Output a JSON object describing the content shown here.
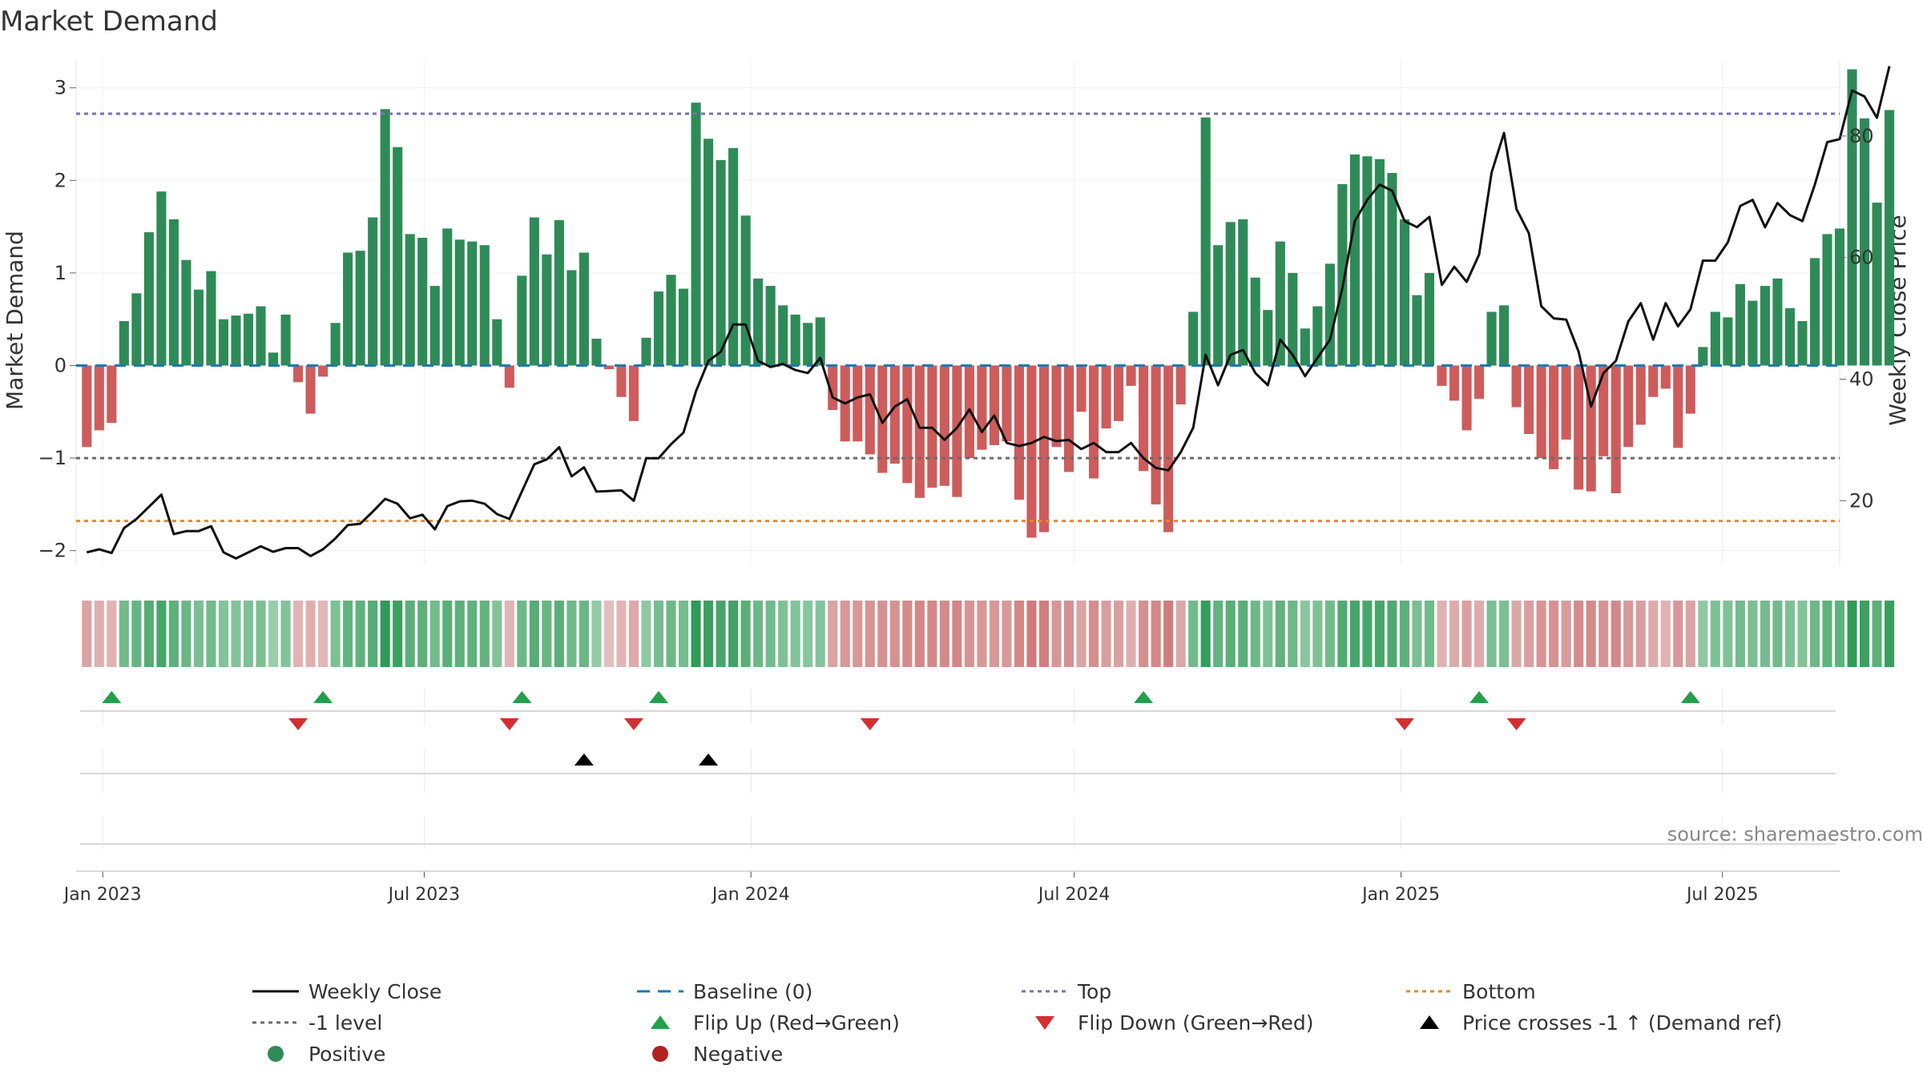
{
  "chart_data": {
    "type": "bar",
    "title": "Market Demand",
    "ylabel": "Market Demand",
    "y2label": "Weekly Close Price",
    "ylim": [
      -2.15,
      3.3
    ],
    "y2lim": [
      9.5,
      92.5
    ],
    "yticks": [
      -2,
      -1,
      0,
      1,
      2,
      3
    ],
    "y2ticks": [
      20,
      40,
      60,
      80
    ],
    "x_start": "2022-12-23",
    "x_step_days": 7,
    "x_min": "2022-12-17",
    "x_max": "2025-09-05",
    "xticks": [
      {
        "date": "2023-01-01",
        "label": "Jan 2023"
      },
      {
        "date": "2023-07-01",
        "label": "Jul 2023"
      },
      {
        "date": "2024-01-01",
        "label": "Jan 2024"
      },
      {
        "date": "2024-07-01",
        "label": "Jul 2024"
      },
      {
        "date": "2025-01-01",
        "label": "Jan 2025"
      },
      {
        "date": "2025-07-01",
        "label": "Jul 2025"
      }
    ],
    "reference_lines": [
      {
        "name": "Baseline (0)",
        "value": 0,
        "color": "#1f77b4"
      },
      {
        "name": "Top",
        "value": 2.72,
        "color": "#7b6fae"
      },
      {
        "name": "-1 level",
        "value": -1,
        "color": "#6b6b6b"
      },
      {
        "name": "Bottom",
        "value": -1.68,
        "color": "#e8892b"
      }
    ],
    "colors": {
      "positive": "#2e8b57",
      "negative": "#cd5c5c",
      "price": "#111111",
      "flip_up": "#22a04b",
      "flip_down": "#d32f2f",
      "cross": "#000000"
    },
    "series": [
      {
        "name": "Market Demand",
        "values": [
          -0.88,
          -0.7,
          -0.62,
          0.48,
          0.78,
          1.44,
          1.88,
          1.58,
          1.14,
          0.82,
          1.02,
          0.5,
          0.54,
          0.56,
          0.64,
          0.14,
          0.55,
          -0.18,
          -0.52,
          -0.12,
          0.46,
          1.22,
          1.24,
          1.6,
          2.77,
          2.36,
          1.42,
          1.38,
          0.86,
          1.48,
          1.36,
          1.34,
          1.3,
          0.5,
          -0.24,
          0.97,
          1.6,
          1.2,
          1.57,
          1.03,
          1.22,
          0.29,
          -0.04,
          -0.34,
          -0.6,
          0.3,
          0.8,
          0.98,
          0.83,
          2.84,
          2.45,
          2.22,
          2.35,
          1.62,
          0.94,
          0.86,
          0.65,
          0.55,
          0.46,
          0.52,
          -0.48,
          -0.82,
          -0.82,
          -0.96,
          -1.16,
          -1.06,
          -1.27,
          -1.43,
          -1.32,
          -1.3,
          -1.42,
          -1.0,
          -0.91,
          -0.86,
          -0.82,
          -1.45,
          -1.86,
          -1.8,
          -0.88,
          -1.15,
          -0.5,
          -1.22,
          -0.68,
          -0.6,
          -0.22,
          -1.14,
          -1.5,
          -1.8,
          -0.42,
          0.58,
          2.68,
          1.3,
          1.55,
          1.58,
          0.95,
          0.6,
          1.34,
          1.0,
          0.4,
          0.64,
          1.1,
          1.96,
          2.28,
          2.26,
          2.23,
          2.08,
          1.58,
          0.76,
          1.0,
          -0.22,
          -0.38,
          -0.7,
          -0.36,
          0.58,
          0.65,
          -0.45,
          -0.74,
          -1.0,
          -1.12,
          -0.8,
          -1.34,
          -1.36,
          -0.98,
          -1.38,
          -0.88,
          -0.64,
          -0.34,
          -0.25,
          -0.89,
          -0.52,
          0.2,
          0.58,
          0.52,
          0.88,
          0.7,
          0.86,
          0.94,
          0.62,
          0.48,
          1.16,
          1.42,
          1.48,
          3.2,
          2.67,
          1.76,
          2.76
        ]
      },
      {
        "name": "Weekly Close",
        "values": [
          11.5,
          12.0,
          11.4,
          15.5,
          17.0,
          19.0,
          21.0,
          14.5,
          15.0,
          15.0,
          15.8,
          11.5,
          10.5,
          11.5,
          12.5,
          11.6,
          12.2,
          12.2,
          10.9,
          12.0,
          13.8,
          16.0,
          16.2,
          18.2,
          20.3,
          19.5,
          17.1,
          17.7,
          15.3,
          19.1,
          19.9,
          20.0,
          19.5,
          17.8,
          17.0,
          21.5,
          26.0,
          26.8,
          28.8,
          24.0,
          25.5,
          21.5,
          21.6,
          21.7,
          20.0,
          27.0,
          27.0,
          29.3,
          31.2,
          38.0,
          43.0,
          44.5,
          49.0,
          49.0,
          43.0,
          42.0,
          42.5,
          41.5,
          41.0,
          43.5,
          37.0,
          36.0,
          37.0,
          37.5,
          32.8,
          35.5,
          36.7,
          32.0,
          32.0,
          30.0,
          32.0,
          35.0,
          31.3,
          34.0,
          29.5,
          29.0,
          29.5,
          30.5,
          29.8,
          30.0,
          28.5,
          29.5,
          28.0,
          28.0,
          29.5,
          27.0,
          25.4,
          25.0,
          28.0,
          32.0,
          44.0,
          39.0,
          44.0,
          44.8,
          41.0,
          39.0,
          46.5,
          44.0,
          40.5,
          43.5,
          46.5,
          55.0,
          66.0,
          69.5,
          72.0,
          71.0,
          66.0,
          65.0,
          66.7,
          55.5,
          58.5,
          56.0,
          60.5,
          74.0,
          80.5,
          68.0,
          64.0,
          52.0,
          50.0,
          49.8,
          44.5,
          35.5,
          41.0,
          43.0,
          49.5,
          52.5,
          46.5,
          52.5,
          48.7,
          51.5,
          59.5,
          59.5,
          62.5,
          68.5,
          69.5,
          65.0,
          69.0,
          67.0,
          66.0,
          72.0,
          79.0,
          79.5,
          87.5,
          86.5,
          83.0,
          91.5
        ]
      }
    ],
    "strip_heat": [
      0.45,
      0.35,
      0.32,
      0.55,
      0.62,
      0.72,
      0.82,
      0.68,
      0.6,
      0.5,
      0.55,
      0.45,
      0.45,
      0.47,
      0.5,
      0.32,
      0.45,
      0.3,
      0.35,
      0.28,
      0.48,
      0.65,
      0.66,
      0.72,
      0.95,
      0.88,
      0.7,
      0.68,
      0.55,
      0.7,
      0.68,
      0.66,
      0.65,
      0.45,
      0.3,
      0.58,
      0.72,
      0.62,
      0.7,
      0.56,
      0.6,
      0.35,
      0.22,
      0.3,
      0.4,
      0.38,
      0.52,
      0.58,
      0.52,
      0.95,
      0.88,
      0.82,
      0.85,
      0.7,
      0.58,
      0.55,
      0.48,
      0.45,
      0.42,
      0.44,
      0.45,
      0.55,
      0.55,
      0.58,
      0.62,
      0.6,
      0.66,
      0.7,
      0.68,
      0.67,
      0.7,
      0.58,
      0.56,
      0.55,
      0.54,
      0.7,
      0.8,
      0.78,
      0.56,
      0.62,
      0.45,
      0.64,
      0.5,
      0.48,
      0.35,
      0.62,
      0.7,
      0.78,
      0.42,
      0.55,
      0.92,
      0.65,
      0.7,
      0.7,
      0.58,
      0.48,
      0.66,
      0.58,
      0.42,
      0.48,
      0.56,
      0.75,
      0.82,
      0.8,
      0.8,
      0.76,
      0.68,
      0.5,
      0.56,
      0.32,
      0.38,
      0.48,
      0.38,
      0.5,
      0.5,
      0.42,
      0.5,
      0.58,
      0.6,
      0.52,
      0.66,
      0.66,
      0.58,
      0.68,
      0.55,
      0.5,
      0.38,
      0.32,
      0.55,
      0.45,
      0.38,
      0.48,
      0.46,
      0.55,
      0.5,
      0.54,
      0.56,
      0.48,
      0.45,
      0.58,
      0.66,
      0.66,
      0.95,
      0.88,
      0.68,
      0.9
    ],
    "signals": {
      "flip_up_dates": [
        "2023-01-06",
        "2023-05-05",
        "2023-08-25",
        "2023-11-10",
        "2024-08-09",
        "2025-02-14",
        "2025-06-13"
      ],
      "flip_down_dates": [
        "2023-04-21",
        "2023-08-18",
        "2023-10-27",
        "2024-03-08",
        "2025-01-03",
        "2025-03-07"
      ],
      "price_cross_dates": [
        "2023-09-29",
        "2023-12-08"
      ]
    },
    "source_text": "source: sharemaestro.com",
    "legend_position": "bottom",
    "legend": [
      {
        "label": "Weekly Close",
        "kind": "line-solid",
        "color": "#111111"
      },
      {
        "label": "Baseline (0)",
        "kind": "line-dash",
        "color": "#1f77b4"
      },
      {
        "label": "Top",
        "kind": "line-dot",
        "color": "#7b6fae"
      },
      {
        "label": "Bottom",
        "kind": "line-dot",
        "color": "#e8892b"
      },
      {
        "label": "-1 level",
        "kind": "line-dot",
        "color": "#6b6b6b"
      },
      {
        "label": "Flip Up (Red→Green)",
        "kind": "tri-up",
        "color": "#22a04b"
      },
      {
        "label": "Flip Down (Green→Red)",
        "kind": "tri-down",
        "color": "#d32f2f"
      },
      {
        "label": "Price crosses -1 ↑ (Demand ref)",
        "kind": "tri-up",
        "color": "#000000"
      },
      {
        "label": "Positive",
        "kind": "dot",
        "color": "#2e8b57"
      },
      {
        "label": "Negative",
        "kind": "dot",
        "color": "#b22222"
      }
    ]
  }
}
